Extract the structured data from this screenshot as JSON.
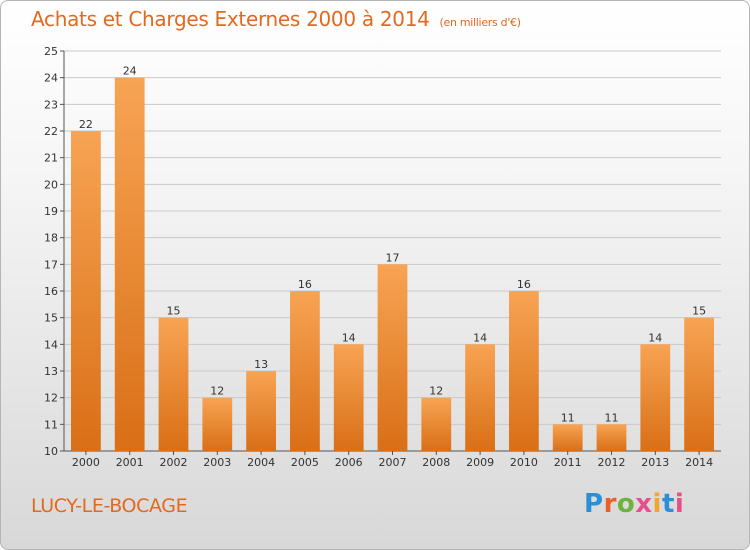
{
  "header": {
    "title": "Achats et Charges Externes 2000 à 2014",
    "subtitle": "(en milliers d'€)"
  },
  "footer": {
    "commune": "LUCY-LE-BOCAGE",
    "logo_text": "Proxiti",
    "logo_colors": [
      "#2a8fd6",
      "#e8612c",
      "#6cb43f",
      "#e94e8a",
      "#f2a62b",
      "#2a8fd6",
      "#e94e8a"
    ]
  },
  "chart_data": {
    "type": "bar",
    "categories": [
      "2000",
      "2001",
      "2002",
      "2003",
      "2004",
      "2005",
      "2006",
      "2007",
      "2008",
      "2009",
      "2010",
      "2011",
      "2012",
      "2013",
      "2014"
    ],
    "values": [
      22,
      24,
      15,
      12,
      13,
      16,
      14,
      17,
      12,
      14,
      16,
      11,
      11,
      14,
      15
    ],
    "ylim": [
      10,
      25
    ],
    "yticks": [
      10,
      11,
      12,
      13,
      14,
      15,
      16,
      17,
      18,
      19,
      20,
      21,
      22,
      23,
      24,
      25
    ],
    "grid": true,
    "colors": {
      "bar_top": "#f7a454",
      "bar_bottom": "#d96f16",
      "grid": "#c9c9c9",
      "label": "#333333"
    }
  }
}
